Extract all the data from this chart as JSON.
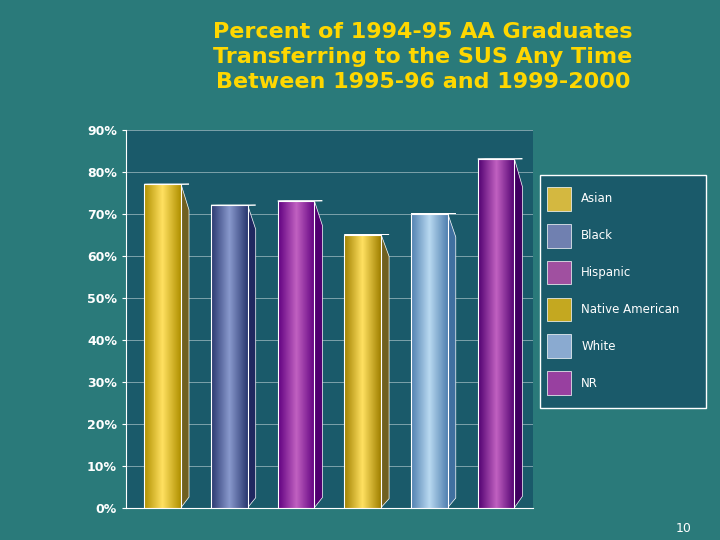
{
  "title": "Percent of 1994-95 AA Graduates\nTransferring to the SUS Any Time\nBetween 1995-96 and 1999-2000",
  "title_color": "#FFD700",
  "title_fontsize": 16,
  "bg_outer": "#2a7a7a",
  "bg_header": "#1a5060",
  "bg_left": "#3a9090",
  "bg_plot": "#1a5a6a",
  "separator_color": "#CCAA00",
  "categories": [
    "Asian",
    "Black",
    "Hispanic",
    "Native American",
    "White",
    "NR"
  ],
  "values": [
    77,
    72,
    73,
    65,
    70,
    83
  ],
  "bar_colors_center": [
    "#FFE060",
    "#8898CC",
    "#C060C0",
    "#FFE060",
    "#B8D8F0",
    "#C060C0"
  ],
  "bar_colors_edge": [
    "#B09000",
    "#2a3870",
    "#600080",
    "#A08000",
    "#5080B0",
    "#500070"
  ],
  "bar_colors_shadow": [
    "#706000",
    "#1a2850",
    "#400060",
    "#706000",
    "#3060A0",
    "#300050"
  ],
  "shadow_colors": [
    "#706020",
    "#202860",
    "#500070",
    "#706020",
    "#4070A0",
    "#400060"
  ],
  "ylim": [
    0,
    90
  ],
  "yticks": [
    0,
    10,
    20,
    30,
    40,
    50,
    60,
    70,
    80,
    90
  ],
  "ytick_labels": [
    "0%",
    "10%",
    "20%",
    "30%",
    "40%",
    "50%",
    "60%",
    "70%",
    "80%",
    "90%"
  ],
  "legend_labels": [
    "Asian",
    "Black",
    "Hispanic",
    "Native American",
    "White",
    "NR"
  ],
  "legend_colors": [
    "#D4B840",
    "#7080B0",
    "#A050A0",
    "#C4A820",
    "#8AAAD0",
    "#9840A0"
  ],
  "page_number": "10"
}
